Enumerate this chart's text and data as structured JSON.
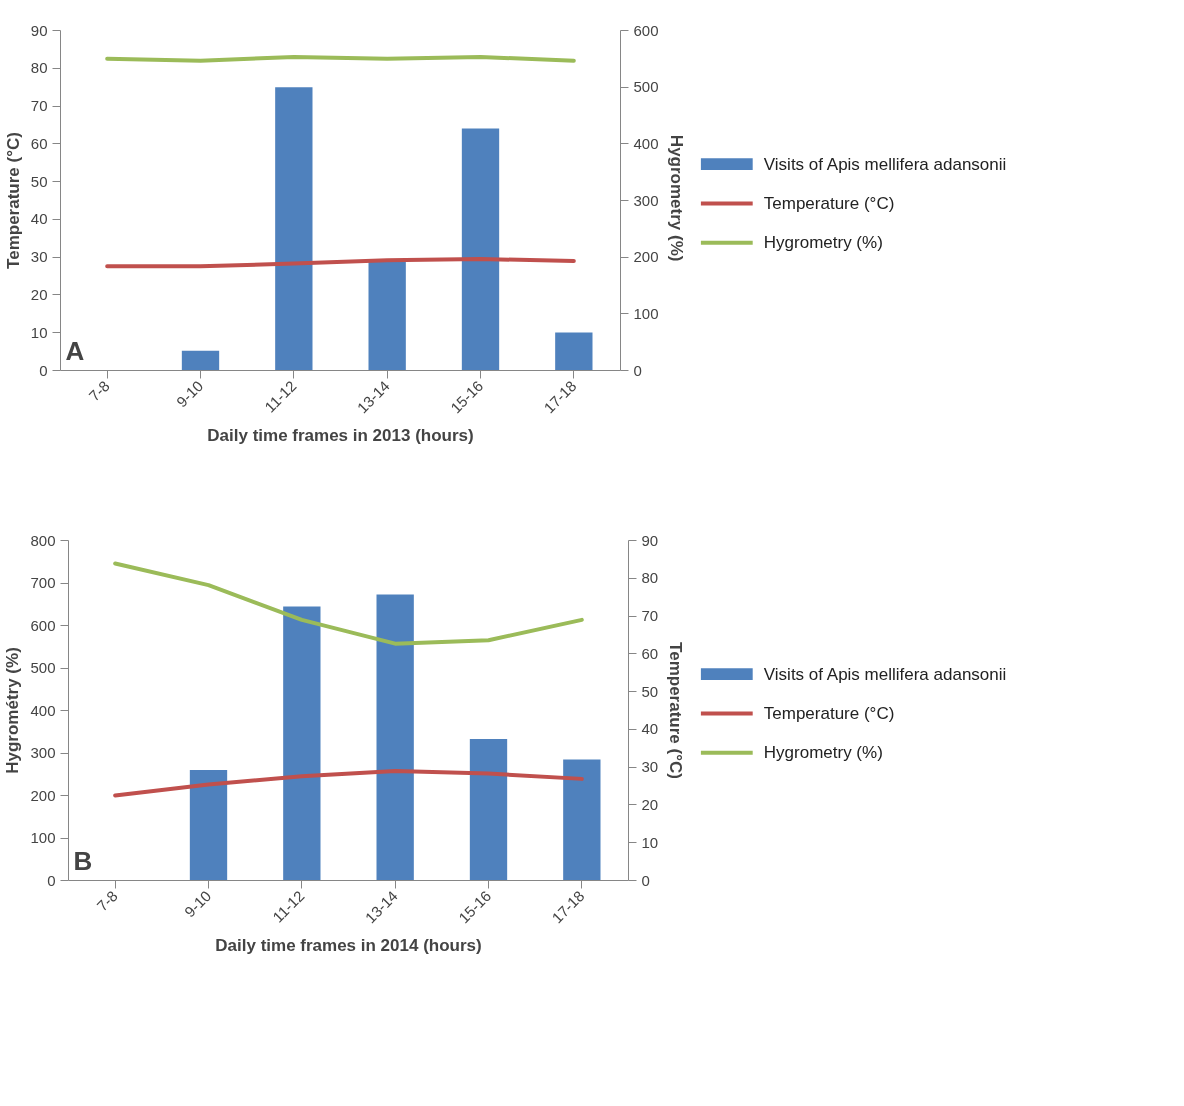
{
  "chart_data": [
    {
      "type": "bar",
      "xlabel": "Daily time frames in 2013 (hours)",
      "ylabel": "Temperature (°C)",
      "y2label": "Hygrometry  (%)",
      "categories": [
        "7-8",
        "9-10",
        "11-12",
        "13-14",
        "15-16",
        "17-18"
      ],
      "series": [
        {
          "name": "Visits of Apis mellifera adansonii",
          "axis": "y2",
          "color": "#4f81bd",
          "values": [
            null,
            35,
            500,
            193,
            427,
            67
          ]
        },
        {
          "name": "Temperature (°C)",
          "type": "line",
          "color": "#c0504d",
          "values": [
            27.6,
            27.6,
            28.3,
            29.2,
            29.5,
            29
          ]
        },
        {
          "name": "Hygrometry (%)",
          "type": "line",
          "color": "#9bbb59",
          "values": [
            82.5,
            82,
            83,
            82.5,
            83,
            82
          ]
        }
      ],
      "ylim": [
        0,
        90
      ],
      "yticks": [
        0,
        10,
        20,
        30,
        40,
        50,
        60,
        70,
        80,
        90
      ],
      "y2lim": [
        0,
        600
      ],
      "y2ticks": [
        0,
        100,
        200,
        300,
        400,
        500,
        600
      ],
      "grid": false,
      "legend": "right",
      "annotations": [
        "A"
      ]
    },
    {
      "type": "bar",
      "xlabel": "Daily time frames in 2014 (hours)",
      "ylabel": "Hygrométry (%)",
      "y2label": "Temperature (°C)",
      "categories": [
        "7-8",
        "9-10",
        "11-12",
        "13-14",
        "15-16",
        "17-18"
      ],
      "series": [
        {
          "name": "Visits of Apis mellifera adansonii",
          "color": "#4f81bd",
          "values": [
            null,
            260,
            645,
            673,
            333,
            285
          ]
        },
        {
          "name": "Temperature (°C)",
          "type": "line",
          "axis": "y2",
          "color": "#c0504d",
          "values": [
            22.5,
            25.4,
            27.6,
            29,
            28.3,
            26.9
          ]
        },
        {
          "name": "Hygrometry (%)",
          "type": "line",
          "axis": "y2",
          "color": "#9bbb59",
          "values": [
            83.9,
            78.2,
            69,
            62.7,
            63.6,
            69
          ]
        }
      ],
      "ylim": [
        0,
        800
      ],
      "yticks": [
        0,
        100,
        200,
        300,
        400,
        500,
        600,
        700,
        800
      ],
      "y2lim": [
        0,
        90
      ],
      "y2ticks": [
        0,
        10,
        20,
        30,
        40,
        50,
        60,
        70,
        80,
        90
      ],
      "grid": false,
      "legend": "right",
      "annotations": [
        "B"
      ]
    }
  ]
}
